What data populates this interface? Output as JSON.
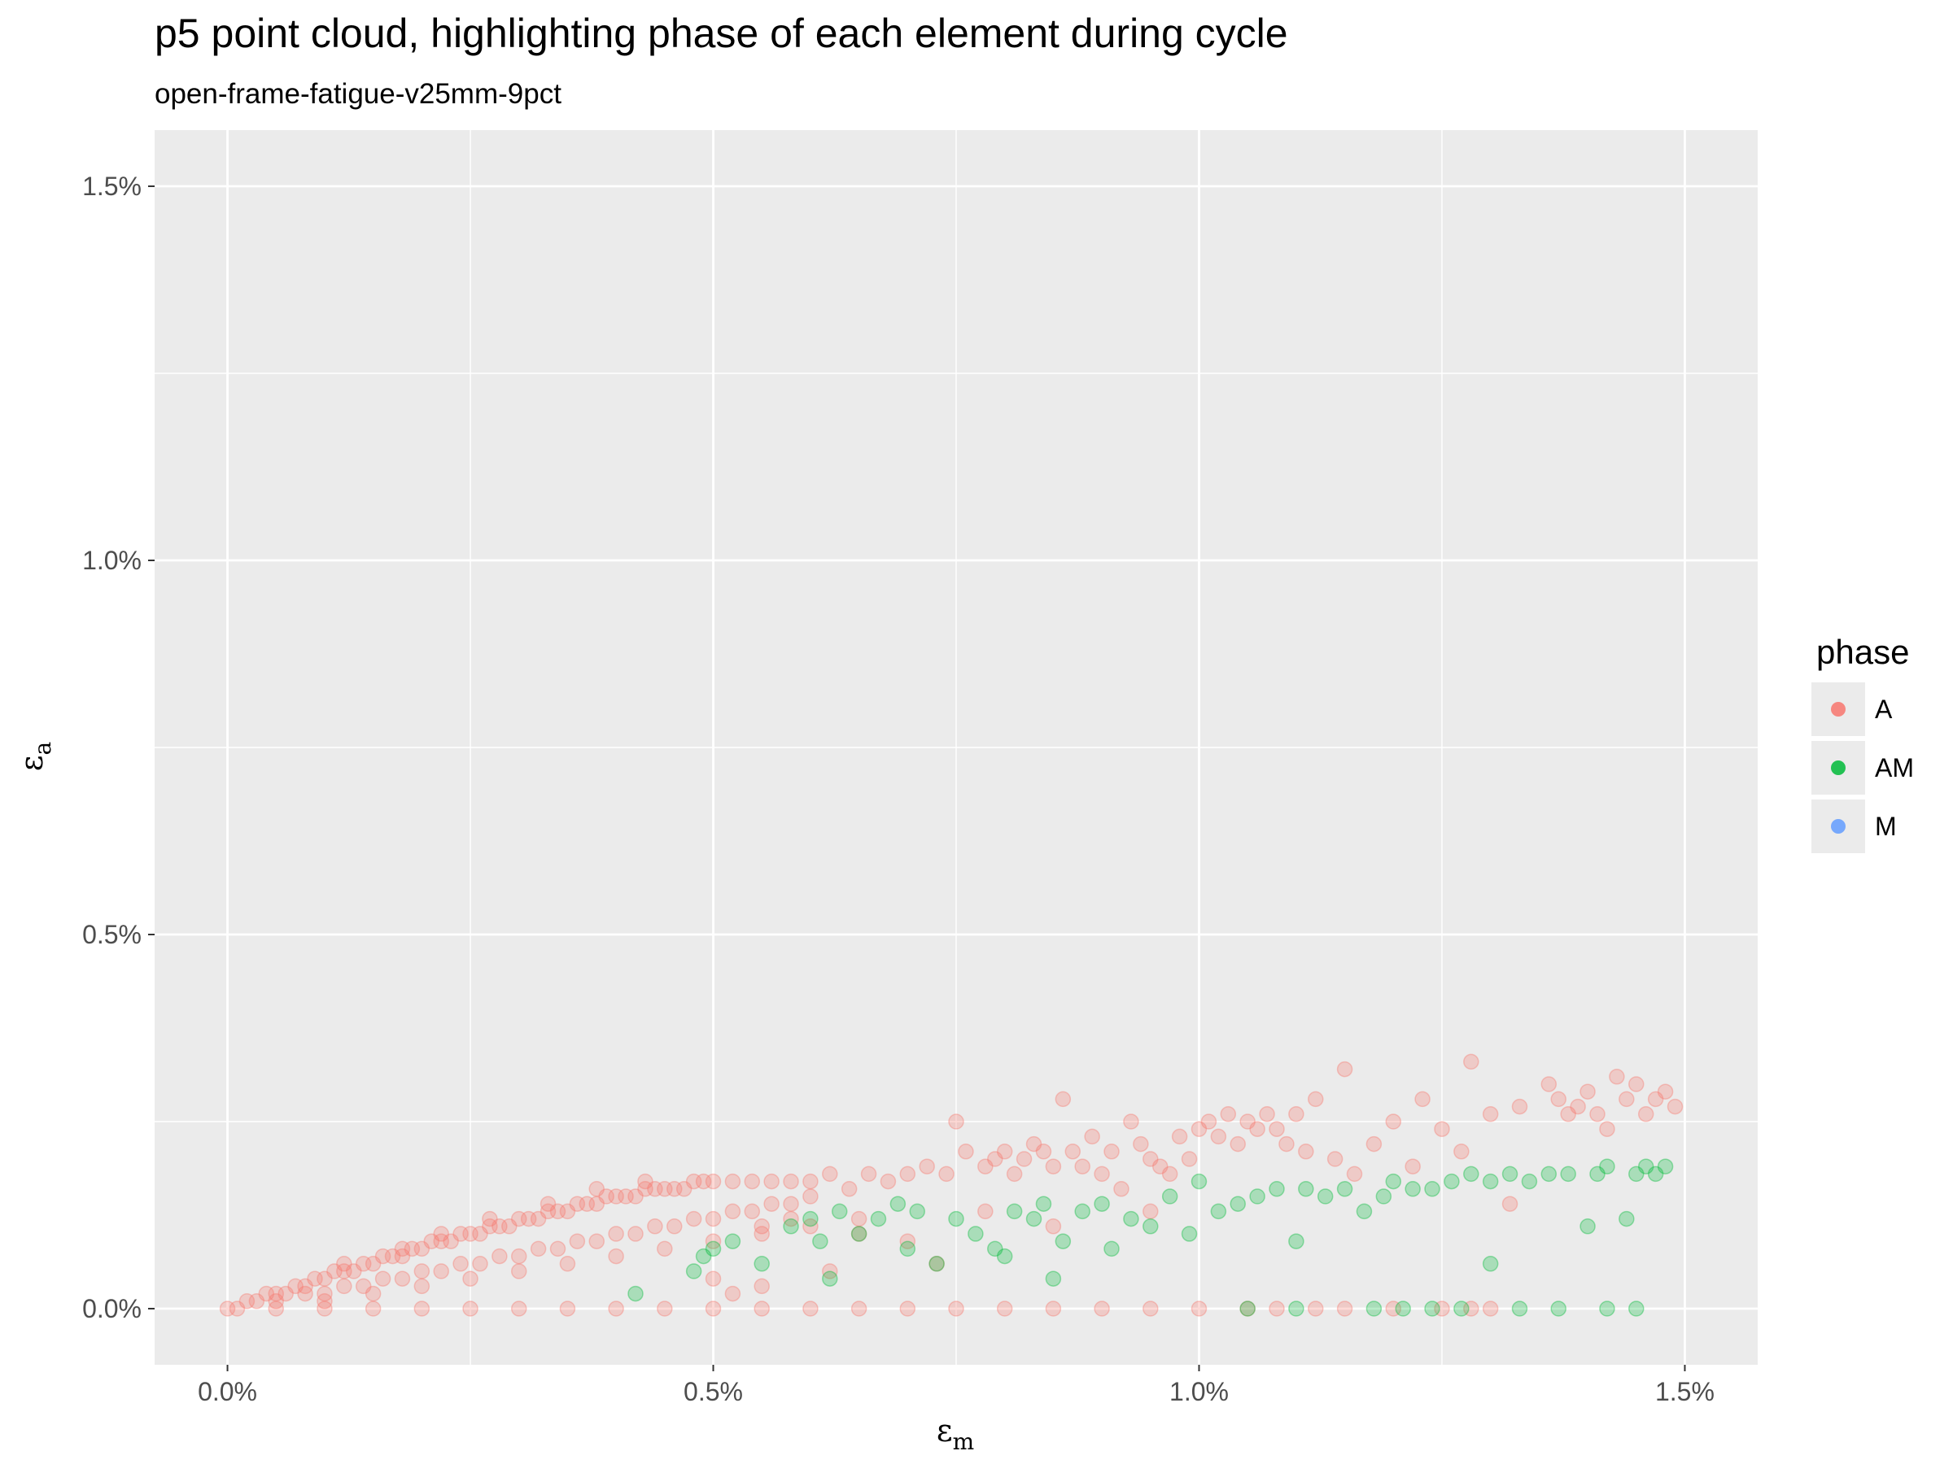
{
  "chart_data": {
    "type": "scatter",
    "title": "p5 point cloud, highlighting phase of each element during cycle",
    "subtitle": "open-frame-fatigue-v25mm-9pct",
    "xlabel": "ε",
    "xlabel_sub": "m",
    "ylabel": "ε",
    "ylabel_sub": "a",
    "xlim": [
      -0.075,
      1.575
    ],
    "ylim": [
      -0.075,
      1.575
    ],
    "x_ticks": [
      0.0,
      0.5,
      1.0,
      1.5
    ],
    "x_tick_labels": [
      "0.0%",
      "0.5%",
      "1.0%",
      "1.5%"
    ],
    "y_ticks": [
      0.0,
      0.5,
      1.0,
      1.5
    ],
    "y_tick_labels": [
      "0.0%",
      "0.5%",
      "1.0%",
      "1.5%"
    ],
    "grid": true,
    "legend_title": "phase",
    "legend_position": "right",
    "point_opacity": 0.28,
    "series": [
      {
        "name": "A",
        "color": "#f8766d",
        "points": [
          [
            0.0,
            0.0
          ],
          [
            0.01,
            0.0
          ],
          [
            0.02,
            0.01
          ],
          [
            0.03,
            0.01
          ],
          [
            0.04,
            0.02
          ],
          [
            0.05,
            0.02
          ],
          [
            0.06,
            0.02
          ],
          [
            0.07,
            0.03
          ],
          [
            0.08,
            0.03
          ],
          [
            0.09,
            0.04
          ],
          [
            0.1,
            0.04
          ],
          [
            0.11,
            0.05
          ],
          [
            0.12,
            0.05
          ],
          [
            0.13,
            0.05
          ],
          [
            0.14,
            0.06
          ],
          [
            0.15,
            0.06
          ],
          [
            0.16,
            0.07
          ],
          [
            0.17,
            0.07
          ],
          [
            0.18,
            0.07
          ],
          [
            0.19,
            0.08
          ],
          [
            0.2,
            0.08
          ],
          [
            0.21,
            0.09
          ],
          [
            0.22,
            0.09
          ],
          [
            0.23,
            0.09
          ],
          [
            0.24,
            0.1
          ],
          [
            0.25,
            0.1
          ],
          [
            0.26,
            0.1
          ],
          [
            0.27,
            0.11
          ],
          [
            0.28,
            0.11
          ],
          [
            0.29,
            0.11
          ],
          [
            0.3,
            0.12
          ],
          [
            0.31,
            0.12
          ],
          [
            0.32,
            0.12
          ],
          [
            0.33,
            0.13
          ],
          [
            0.34,
            0.13
          ],
          [
            0.35,
            0.13
          ],
          [
            0.36,
            0.14
          ],
          [
            0.37,
            0.14
          ],
          [
            0.38,
            0.14
          ],
          [
            0.39,
            0.15
          ],
          [
            0.4,
            0.15
          ],
          [
            0.41,
            0.15
          ],
          [
            0.42,
            0.15
          ],
          [
            0.43,
            0.16
          ],
          [
            0.44,
            0.16
          ],
          [
            0.45,
            0.16
          ],
          [
            0.46,
            0.16
          ],
          [
            0.47,
            0.16
          ],
          [
            0.48,
            0.17
          ],
          [
            0.49,
            0.17
          ],
          [
            0.5,
            0.17
          ],
          [
            0.52,
            0.17
          ],
          [
            0.54,
            0.17
          ],
          [
            0.56,
            0.17
          ],
          [
            0.58,
            0.17
          ],
          [
            0.6,
            0.17
          ],
          [
            0.05,
            0.01
          ],
          [
            0.08,
            0.02
          ],
          [
            0.1,
            0.02
          ],
          [
            0.12,
            0.03
          ],
          [
            0.14,
            0.03
          ],
          [
            0.16,
            0.04
          ],
          [
            0.18,
            0.04
          ],
          [
            0.2,
            0.05
          ],
          [
            0.22,
            0.05
          ],
          [
            0.24,
            0.06
          ],
          [
            0.26,
            0.06
          ],
          [
            0.28,
            0.07
          ],
          [
            0.3,
            0.07
          ],
          [
            0.32,
            0.08
          ],
          [
            0.34,
            0.08
          ],
          [
            0.36,
            0.09
          ],
          [
            0.38,
            0.09
          ],
          [
            0.4,
            0.1
          ],
          [
            0.42,
            0.1
          ],
          [
            0.44,
            0.11
          ],
          [
            0.46,
            0.11
          ],
          [
            0.48,
            0.12
          ],
          [
            0.5,
            0.12
          ],
          [
            0.52,
            0.13
          ],
          [
            0.54,
            0.13
          ],
          [
            0.56,
            0.14
          ],
          [
            0.58,
            0.14
          ],
          [
            0.6,
            0.15
          ],
          [
            0.1,
            0.01
          ],
          [
            0.15,
            0.02
          ],
          [
            0.2,
            0.03
          ],
          [
            0.25,
            0.04
          ],
          [
            0.3,
            0.05
          ],
          [
            0.35,
            0.06
          ],
          [
            0.4,
            0.07
          ],
          [
            0.45,
            0.08
          ],
          [
            0.5,
            0.09
          ],
          [
            0.55,
            0.1
          ],
          [
            0.6,
            0.11
          ],
          [
            0.65,
            0.12
          ],
          [
            0.12,
            0.06
          ],
          [
            0.18,
            0.08
          ],
          [
            0.22,
            0.1
          ],
          [
            0.27,
            0.12
          ],
          [
            0.33,
            0.14
          ],
          [
            0.38,
            0.16
          ],
          [
            0.43,
            0.17
          ],
          [
            0.55,
            0.11
          ],
          [
            0.58,
            0.12
          ],
          [
            0.62,
            0.18
          ],
          [
            0.64,
            0.16
          ],
          [
            0.66,
            0.18
          ],
          [
            0.68,
            0.17
          ],
          [
            0.7,
            0.18
          ],
          [
            0.72,
            0.19
          ],
          [
            0.74,
            0.18
          ],
          [
            0.75,
            0.25
          ],
          [
            0.76,
            0.21
          ],
          [
            0.78,
            0.19
          ],
          [
            0.79,
            0.2
          ],
          [
            0.8,
            0.21
          ],
          [
            0.81,
            0.18
          ],
          [
            0.82,
            0.2
          ],
          [
            0.83,
            0.22
          ],
          [
            0.84,
            0.21
          ],
          [
            0.85,
            0.19
          ],
          [
            0.86,
            0.28
          ],
          [
            0.87,
            0.21
          ],
          [
            0.88,
            0.19
          ],
          [
            0.89,
            0.23
          ],
          [
            0.9,
            0.18
          ],
          [
            0.91,
            0.21
          ],
          [
            0.92,
            0.16
          ],
          [
            0.93,
            0.25
          ],
          [
            0.94,
            0.22
          ],
          [
            0.95,
            0.2
          ],
          [
            0.96,
            0.19
          ],
          [
            0.97,
            0.18
          ],
          [
            0.98,
            0.23
          ],
          [
            0.99,
            0.2
          ],
          [
            1.0,
            0.24
          ],
          [
            1.01,
            0.25
          ],
          [
            1.02,
            0.23
          ],
          [
            1.03,
            0.26
          ],
          [
            1.04,
            0.22
          ],
          [
            1.05,
            0.25
          ],
          [
            1.06,
            0.24
          ],
          [
            1.07,
            0.26
          ],
          [
            1.08,
            0.24
          ],
          [
            1.09,
            0.22
          ],
          [
            1.1,
            0.26
          ],
          [
            1.11,
            0.21
          ],
          [
            1.12,
            0.28
          ],
          [
            1.14,
            0.2
          ],
          [
            1.15,
            0.32
          ],
          [
            1.16,
            0.18
          ],
          [
            1.18,
            0.22
          ],
          [
            1.2,
            0.25
          ],
          [
            1.22,
            0.19
          ],
          [
            1.23,
            0.28
          ],
          [
            1.25,
            0.24
          ],
          [
            1.27,
            0.21
          ],
          [
            1.28,
            0.33
          ],
          [
            1.3,
            0.26
          ],
          [
            1.32,
            0.14
          ],
          [
            1.33,
            0.27
          ],
          [
            1.36,
            0.3
          ],
          [
            1.37,
            0.28
          ],
          [
            1.38,
            0.26
          ],
          [
            1.39,
            0.27
          ],
          [
            1.4,
            0.29
          ],
          [
            1.41,
            0.26
          ],
          [
            1.42,
            0.24
          ],
          [
            1.43,
            0.31
          ],
          [
            1.44,
            0.28
          ],
          [
            1.45,
            0.3
          ],
          [
            1.46,
            0.26
          ],
          [
            1.47,
            0.28
          ],
          [
            1.48,
            0.29
          ],
          [
            1.49,
            0.27
          ],
          [
            0.65,
            0.1
          ],
          [
            0.7,
            0.09
          ],
          [
            0.73,
            0.06
          ],
          [
            0.78,
            0.13
          ],
          [
            0.85,
            0.11
          ],
          [
            0.95,
            0.13
          ],
          [
            0.52,
            0.02
          ],
          [
            0.5,
            0.04
          ],
          [
            0.55,
            0.03
          ],
          [
            0.62,
            0.05
          ],
          [
            0.05,
            0.0
          ],
          [
            0.1,
            0.0
          ],
          [
            0.15,
            0.0
          ],
          [
            0.2,
            0.0
          ],
          [
            0.25,
            0.0
          ],
          [
            0.3,
            0.0
          ],
          [
            0.35,
            0.0
          ],
          [
            0.4,
            0.0
          ],
          [
            0.45,
            0.0
          ],
          [
            0.5,
            0.0
          ],
          [
            0.55,
            0.0
          ],
          [
            0.6,
            0.0
          ],
          [
            0.65,
            0.0
          ],
          [
            0.7,
            0.0
          ],
          [
            0.75,
            0.0
          ],
          [
            0.8,
            0.0
          ],
          [
            0.85,
            0.0
          ],
          [
            0.9,
            0.0
          ],
          [
            0.95,
            0.0
          ],
          [
            1.0,
            0.0
          ],
          [
            1.05,
            0.0
          ],
          [
            1.08,
            0.0
          ],
          [
            1.12,
            0.0
          ],
          [
            1.15,
            0.0
          ],
          [
            1.2,
            0.0
          ],
          [
            1.25,
            0.0
          ],
          [
            1.28,
            0.0
          ],
          [
            1.3,
            0.0
          ]
        ]
      },
      {
        "name": "AM",
        "color": "#00ba38",
        "points": [
          [
            0.42,
            0.02
          ],
          [
            0.48,
            0.05
          ],
          [
            0.49,
            0.07
          ],
          [
            0.5,
            0.08
          ],
          [
            0.52,
            0.09
          ],
          [
            0.55,
            0.06
          ],
          [
            0.58,
            0.11
          ],
          [
            0.6,
            0.12
          ],
          [
            0.61,
            0.09
          ],
          [
            0.62,
            0.04
          ],
          [
            0.63,
            0.13
          ],
          [
            0.65,
            0.1
          ],
          [
            0.67,
            0.12
          ],
          [
            0.69,
            0.14
          ],
          [
            0.7,
            0.08
          ],
          [
            0.71,
            0.13
          ],
          [
            0.73,
            0.06
          ],
          [
            0.75,
            0.12
          ],
          [
            0.77,
            0.1
          ],
          [
            0.79,
            0.08
          ],
          [
            0.8,
            0.07
          ],
          [
            0.81,
            0.13
          ],
          [
            0.83,
            0.12
          ],
          [
            0.84,
            0.14
          ],
          [
            0.85,
            0.04
          ],
          [
            0.86,
            0.09
          ],
          [
            0.88,
            0.13
          ],
          [
            0.9,
            0.14
          ],
          [
            0.91,
            0.08
          ],
          [
            0.93,
            0.12
          ],
          [
            0.95,
            0.11
          ],
          [
            0.97,
            0.15
          ],
          [
            0.99,
            0.1
          ],
          [
            1.0,
            0.17
          ],
          [
            1.02,
            0.13
          ],
          [
            1.04,
            0.14
          ],
          [
            1.06,
            0.15
          ],
          [
            1.08,
            0.16
          ],
          [
            1.1,
            0.09
          ],
          [
            1.11,
            0.16
          ],
          [
            1.13,
            0.15
          ],
          [
            1.15,
            0.16
          ],
          [
            1.17,
            0.13
          ],
          [
            1.19,
            0.15
          ],
          [
            1.2,
            0.17
          ],
          [
            1.22,
            0.16
          ],
          [
            1.24,
            0.16
          ],
          [
            1.26,
            0.17
          ],
          [
            1.28,
            0.18
          ],
          [
            1.3,
            0.17
          ],
          [
            1.32,
            0.18
          ],
          [
            1.34,
            0.17
          ],
          [
            1.36,
            0.18
          ],
          [
            1.38,
            0.18
          ],
          [
            1.4,
            0.11
          ],
          [
            1.41,
            0.18
          ],
          [
            1.42,
            0.19
          ],
          [
            1.44,
            0.12
          ],
          [
            1.45,
            0.18
          ],
          [
            1.46,
            0.19
          ],
          [
            1.47,
            0.18
          ],
          [
            1.48,
            0.19
          ],
          [
            1.3,
            0.06
          ],
          [
            1.05,
            0.0
          ],
          [
            1.1,
            0.0
          ],
          [
            1.18,
            0.0
          ],
          [
            1.21,
            0.0
          ],
          [
            1.24,
            0.0
          ],
          [
            1.27,
            0.0
          ],
          [
            1.33,
            0.0
          ],
          [
            1.37,
            0.0
          ],
          [
            1.42,
            0.0
          ],
          [
            1.45,
            0.0
          ]
        ]
      },
      {
        "name": "M",
        "color": "#619cff",
        "points": []
      }
    ]
  }
}
